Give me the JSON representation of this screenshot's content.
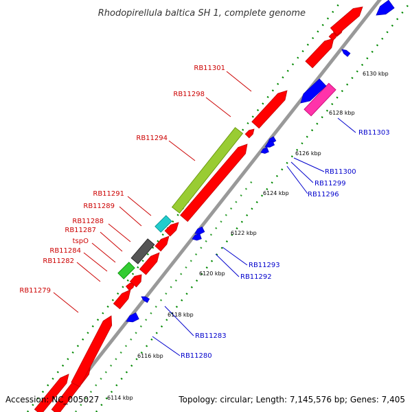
{
  "title": "Rhodopirellula baltica SH 1, complete genome",
  "accession": "Accession: NC_005027",
  "topology": "Topology: circular; Length: 7,145,576 bp; Genes: 7,405",
  "colors": {
    "red_gene": "#ff0000",
    "blue_gene": "#0000ff",
    "green_gene": "#99cc33",
    "cyan_gene": "#22cccc",
    "gray_gene": "#555555",
    "small_green_gene": "#33cc33",
    "magenta_gene": "#ff33aa",
    "ruler": "#999999",
    "dots": "#008800",
    "left_labels": "#cc0000",
    "right_labels": "#0000cc"
  },
  "ticks": [
    "6114 kbp",
    "6116 kbp",
    "6118 kbp",
    "6120 kbp",
    "6122 kbp",
    "6124 kbp",
    "6126 kbp",
    "6128 kbp",
    "6130 kbp"
  ],
  "left_labels": [
    "RB11301",
    "RB11298",
    "RB11294",
    "RB11291",
    "RB11289",
    "RB11288",
    "RB11287",
    "tspO",
    "RB11284",
    "RB11282",
    "RB11279"
  ],
  "right_labels": [
    "RB11303",
    "RB11300",
    "RB11299",
    "RB11296",
    "RB11293",
    "RB11292",
    "RB11283",
    "RB11280"
  ]
}
